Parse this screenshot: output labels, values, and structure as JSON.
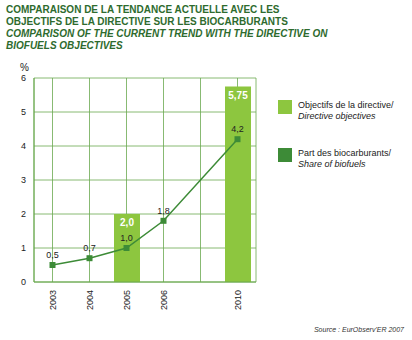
{
  "chart_data": {
    "type": "bar",
    "title": "COMPARAISON DE LA TENDANCE ACTUELLE AVEC LES OBJECTIFS DE LA DIRECTIVE SUR LES BIOCARBURANTS",
    "subtitle": "COMPARISON OF THE CURRENT TREND WITH THE DIRECTIVE ON BIOFUELS OBJECTIVES",
    "ylabel": "%",
    "source": "Source : EurObserv'ER 2007",
    "categories": [
      "2003",
      "2004",
      "2005",
      "2006",
      null,
      "2010"
    ],
    "series": [
      {
        "name": "Objectifs de la directive/ Directive objectives",
        "type": "bar",
        "color": "#8dc63f",
        "values": [
          null,
          null,
          2.0,
          null,
          null,
          5.75
        ],
        "value_labels": [
          null,
          null,
          "2,0",
          null,
          null,
          "5,75"
        ]
      },
      {
        "name": "Part des biocarburants/ Share of biofuels",
        "type": "line",
        "color": "#3d8b37",
        "marker": "square",
        "values": [
          0.5,
          0.7,
          1.0,
          1.8,
          null,
          4.2
        ],
        "value_labels": [
          "0,5",
          "0,7",
          "1,0",
          "1,8",
          null,
          "4,2"
        ]
      }
    ],
    "ylim": [
      0,
      6
    ],
    "yticks": [
      0,
      1,
      2,
      3,
      4,
      5,
      6
    ],
    "grid": true,
    "data_labels": true,
    "legend": "right"
  }
}
